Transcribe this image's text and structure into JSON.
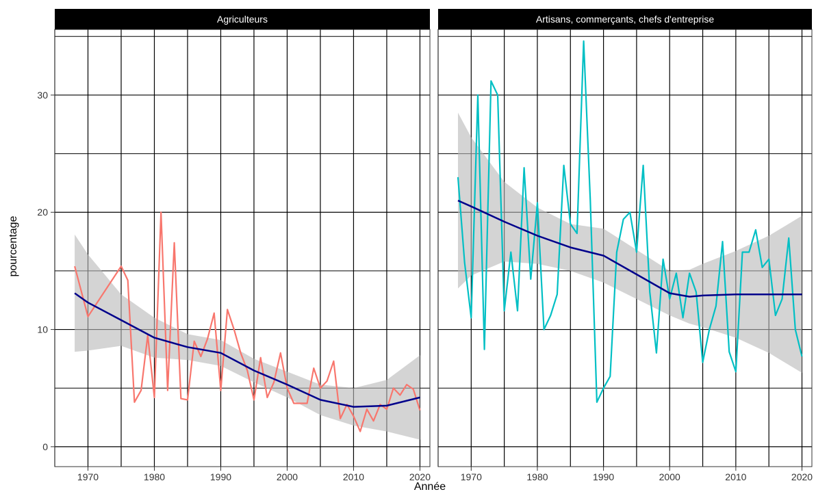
{
  "chart_data": {
    "type": "line",
    "xlabel": "Année",
    "ylabel": "pourcentage",
    "xlim": [
      1965,
      2021.5
    ],
    "ylim": [
      -1.7,
      35.6
    ],
    "x_ticks": [
      1970,
      1980,
      1990,
      2000,
      2010,
      2020
    ],
    "x_tick_labels": [
      "1970",
      "1980",
      "1990",
      "2000",
      "2010",
      "2020"
    ],
    "y_ticks": [
      0,
      10,
      20,
      30
    ],
    "y_tick_labels": [
      "0",
      "10",
      "20",
      "30"
    ],
    "grid": "on",
    "legend": "none",
    "facets": [
      {
        "strip": "Agriculteurs",
        "line_color": "#F8766D",
        "x": [
          1968,
          1970,
          1975,
          1976,
          1977,
          1978,
          1979,
          1980,
          1981,
          1982,
          1983,
          1984,
          1985,
          1986,
          1987,
          1988,
          1989,
          1990,
          1991,
          1992,
          1993,
          1994,
          1995,
          1996,
          1997,
          1998,
          1999,
          2000,
          2001,
          2002,
          2003,
          2004,
          2005,
          2006,
          2007,
          2008,
          2009,
          2010,
          2011,
          2012,
          2013,
          2014,
          2015,
          2016,
          2017,
          2018,
          2019,
          2020
        ],
        "y": [
          15.4,
          11.1,
          15.4,
          14.2,
          3.8,
          4.8,
          9.5,
          4.2,
          20.0,
          4.8,
          17.4,
          4.1,
          4.0,
          9.0,
          7.7,
          9.2,
          11.4,
          4.8,
          11.7,
          10.0,
          8.0,
          6.5,
          4.0,
          7.6,
          4.2,
          5.5,
          8.0,
          5.0,
          3.7,
          3.7,
          3.7,
          6.7,
          5.0,
          5.6,
          7.3,
          2.4,
          3.6,
          2.6,
          1.3,
          3.2,
          2.2,
          3.6,
          3.2,
          5.0,
          4.4,
          5.3,
          4.9,
          3.1
        ],
        "trend_x": [
          1968,
          1970,
          1975,
          1980,
          1985,
          1990,
          1995,
          2000,
          2005,
          2010,
          2015,
          2020
        ],
        "trend_y": [
          13.1,
          12.3,
          10.8,
          9.3,
          8.5,
          8.0,
          6.5,
          5.3,
          4.0,
          3.4,
          3.5,
          4.2
        ],
        "ci_lower": [
          8.1,
          8.2,
          8.6,
          7.6,
          7.4,
          6.9,
          5.5,
          4.2,
          2.7,
          1.8,
          1.3,
          0.6
        ],
        "ci_upper": [
          18.1,
          16.4,
          13.0,
          11.0,
          9.6,
          9.1,
          7.5,
          6.4,
          5.3,
          5.0,
          5.7,
          7.8
        ]
      },
      {
        "strip": "Artisans, commerçants, chefs d'entreprise",
        "line_color": "#00BFC4",
        "x": [
          1968,
          1969,
          1970,
          1971,
          1972,
          1973,
          1974,
          1975,
          1976,
          1977,
          1978,
          1979,
          1980,
          1981,
          1982,
          1983,
          1984,
          1985,
          1986,
          1987,
          1988,
          1989,
          1990,
          1991,
          1992,
          1993,
          1994,
          1995,
          1996,
          1997,
          1998,
          1999,
          2000,
          2001,
          2002,
          2003,
          2004,
          2005,
          2006,
          2007,
          2008,
          2009,
          2010,
          2011,
          2012,
          2013,
          2014,
          2015,
          2016,
          2017,
          2018,
          2019,
          2020
        ],
        "y": [
          23.0,
          15.7,
          11.0,
          30.0,
          8.3,
          31.2,
          30.0,
          11.6,
          16.6,
          11.6,
          23.8,
          14.3,
          20.8,
          10.0,
          11.2,
          13.0,
          24.0,
          19.0,
          18.2,
          34.6,
          21.0,
          3.8,
          5.0,
          6.0,
          16.6,
          19.4,
          20.0,
          16.6,
          24.0,
          13.2,
          8.0,
          16.0,
          12.6,
          14.8,
          11.0,
          14.8,
          13.2,
          7.2,
          10.0,
          12.0,
          17.5,
          8.1,
          6.4,
          16.6,
          16.6,
          18.5,
          15.3,
          16.0,
          11.2,
          12.6,
          17.8,
          10.0,
          7.7
        ],
        "trend_x": [
          1968,
          1970,
          1975,
          1980,
          1985,
          1990,
          1995,
          2000,
          2003,
          2005,
          2010,
          2015,
          2020
        ],
        "trend_y": [
          21.0,
          20.5,
          19.2,
          18.0,
          17.0,
          16.3,
          14.7,
          13.1,
          12.8,
          12.9,
          13.0,
          13.0,
          13.0
        ],
        "ci_lower": [
          13.5,
          14.6,
          15.8,
          15.6,
          15.0,
          14.0,
          12.6,
          11.2,
          10.5,
          10.2,
          9.3,
          8.0,
          6.3
        ],
        "ci_upper": [
          28.5,
          26.4,
          22.6,
          20.4,
          19.0,
          18.6,
          16.8,
          15.0,
          15.1,
          15.6,
          16.7,
          18.0,
          19.7
        ]
      }
    ]
  }
}
